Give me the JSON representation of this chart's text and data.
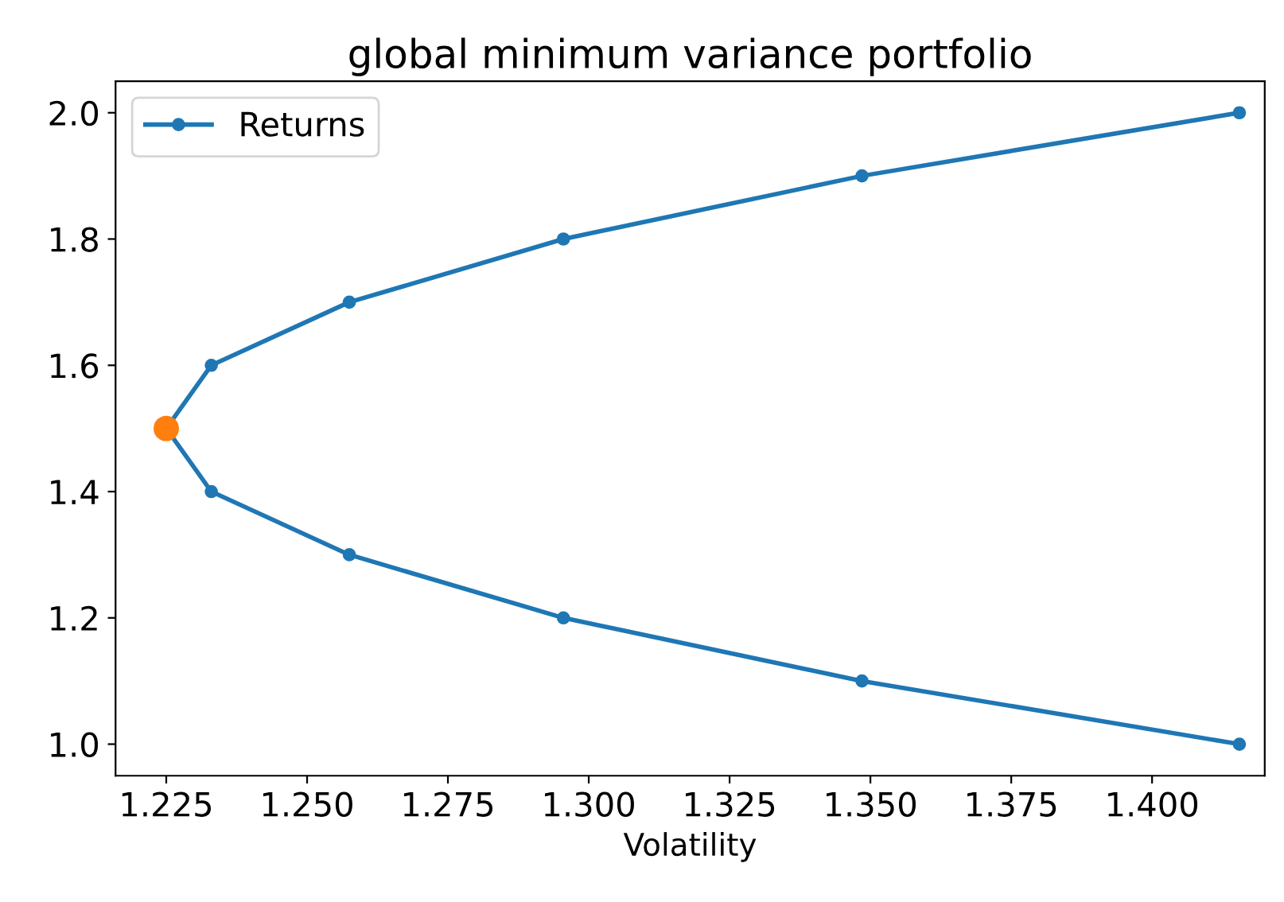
{
  "chart_data": {
    "type": "line",
    "title": "global minimum variance portfolio",
    "xlabel": "Volatility",
    "xlim": [
      1.216,
      1.42
    ],
    "ylim": [
      0.95,
      2.05
    ],
    "xticks": [
      {
        "value": 1.225,
        "label": "1.225"
      },
      {
        "value": 1.25,
        "label": "1.250"
      },
      {
        "value": 1.275,
        "label": "1.275"
      },
      {
        "value": 1.3,
        "label": "1.300"
      },
      {
        "value": 1.325,
        "label": "1.325"
      },
      {
        "value": 1.35,
        "label": "1.350"
      },
      {
        "value": 1.375,
        "label": "1.375"
      },
      {
        "value": 1.4,
        "label": "1.400"
      }
    ],
    "yticks": [
      {
        "value": 1.0,
        "label": "1.0"
      },
      {
        "value": 1.2,
        "label": "1.2"
      },
      {
        "value": 1.4,
        "label": "1.4"
      },
      {
        "value": 1.6,
        "label": "1.6"
      },
      {
        "value": 1.8,
        "label": "1.8"
      },
      {
        "value": 2.0,
        "label": "2.0"
      }
    ],
    "legend": "top left",
    "grid": false,
    "series": [
      {
        "name": "Returns",
        "marker": "circle",
        "color": "#1f77b4",
        "x": [
          1.4155,
          1.3485,
          1.2955,
          1.2575,
          1.233,
          1.225,
          1.233,
          1.2575,
          1.2955,
          1.3485,
          1.4155
        ],
        "values": [
          1.0,
          1.1,
          1.2,
          1.3,
          1.4,
          1.5,
          1.6,
          1.7,
          1.8,
          1.9,
          2.0
        ]
      },
      {
        "type": "scatter",
        "marker": "circle",
        "color": "#ff7f0e",
        "x": [
          1.225
        ],
        "values": [
          1.5
        ]
      }
    ]
  }
}
